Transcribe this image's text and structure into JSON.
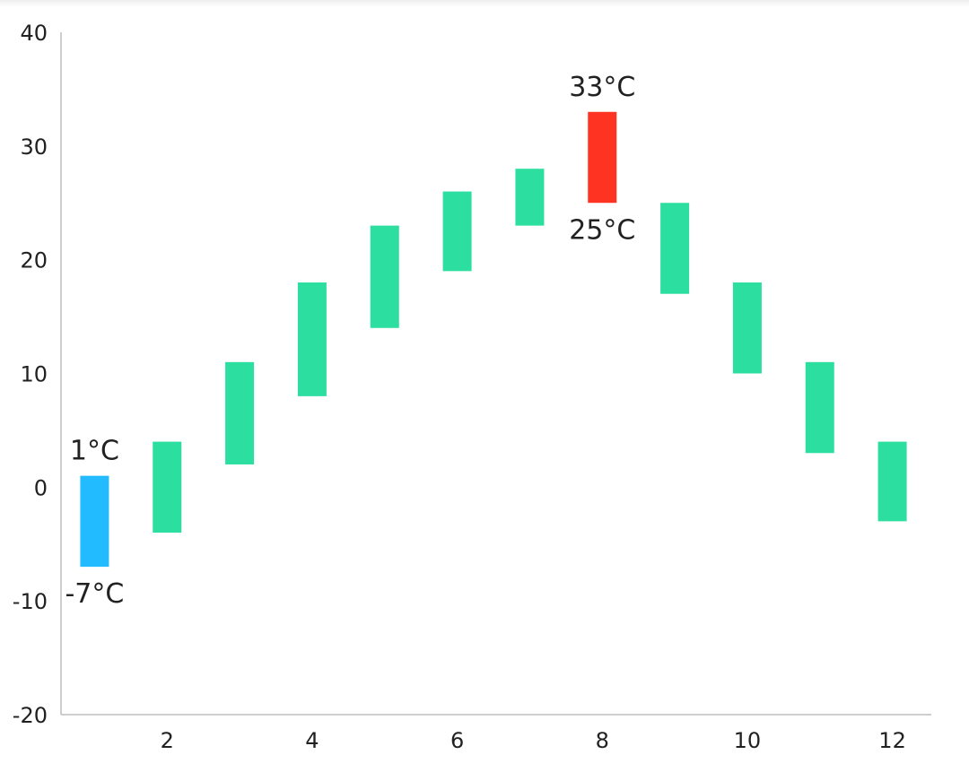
{
  "chart_data": {
    "type": "bar",
    "subtype": "floating-range",
    "title": "",
    "xlabel": "",
    "ylabel": "",
    "x": [
      1,
      2,
      3,
      4,
      5,
      6,
      7,
      8,
      9,
      10,
      11,
      12
    ],
    "low": [
      -7,
      -4,
      2,
      8,
      14,
      19,
      23,
      25,
      17,
      10,
      3,
      -3
    ],
    "high": [
      1,
      4,
      11,
      18,
      23,
      26,
      28,
      33,
      25,
      18,
      11,
      4
    ],
    "xlim": [
      0.5,
      12.5
    ],
    "ylim": [
      -20,
      40
    ],
    "y_ticks": [
      "-20",
      "-10",
      "0",
      "10",
      "20",
      "30",
      "40"
    ],
    "x_ticks": [
      "2",
      "4",
      "6",
      "8",
      "10",
      "12"
    ],
    "grid": false,
    "colors": {
      "default": "#2cdfa0",
      "min": "#22bbff",
      "max": "#ff3322",
      "axis": "#bdbdbd"
    },
    "highlights": {
      "min_index": 0,
      "max_index": 7
    },
    "annotations": {
      "min_high": "1°C",
      "min_low": "-7°C",
      "max_high": "33°C",
      "max_low": "25°C"
    }
  }
}
